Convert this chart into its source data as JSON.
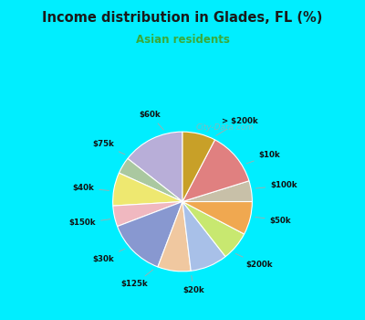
{
  "title": "Income distribution in Glades, FL (%)",
  "subtitle": "Asian residents",
  "title_color": "#1a1a1a",
  "subtitle_color": "#3aaa3a",
  "background_top": "#00eeff",
  "background_chart_color": "#dff0e8",
  "watermark": "City-Data.com",
  "labels": [
    "> $200k",
    "$10k",
    "$100k",
    "$50k",
    "$200k",
    "$20k",
    "$125k",
    "$30k",
    "$150k",
    "$40k",
    "$75k",
    "$60k"
  ],
  "values": [
    15,
    4,
    8,
    5,
    14,
    8,
    9,
    7,
    8,
    5,
    13,
    8
  ],
  "colors": [
    "#b8aed8",
    "#aac8a0",
    "#eee870",
    "#f0b8c0",
    "#8898d0",
    "#f0c8a0",
    "#a8c0e8",
    "#c8e870",
    "#f0a850",
    "#c8c0a8",
    "#e08080",
    "#c8a028"
  ],
  "startangle": 90,
  "label_distance": 1.28
}
